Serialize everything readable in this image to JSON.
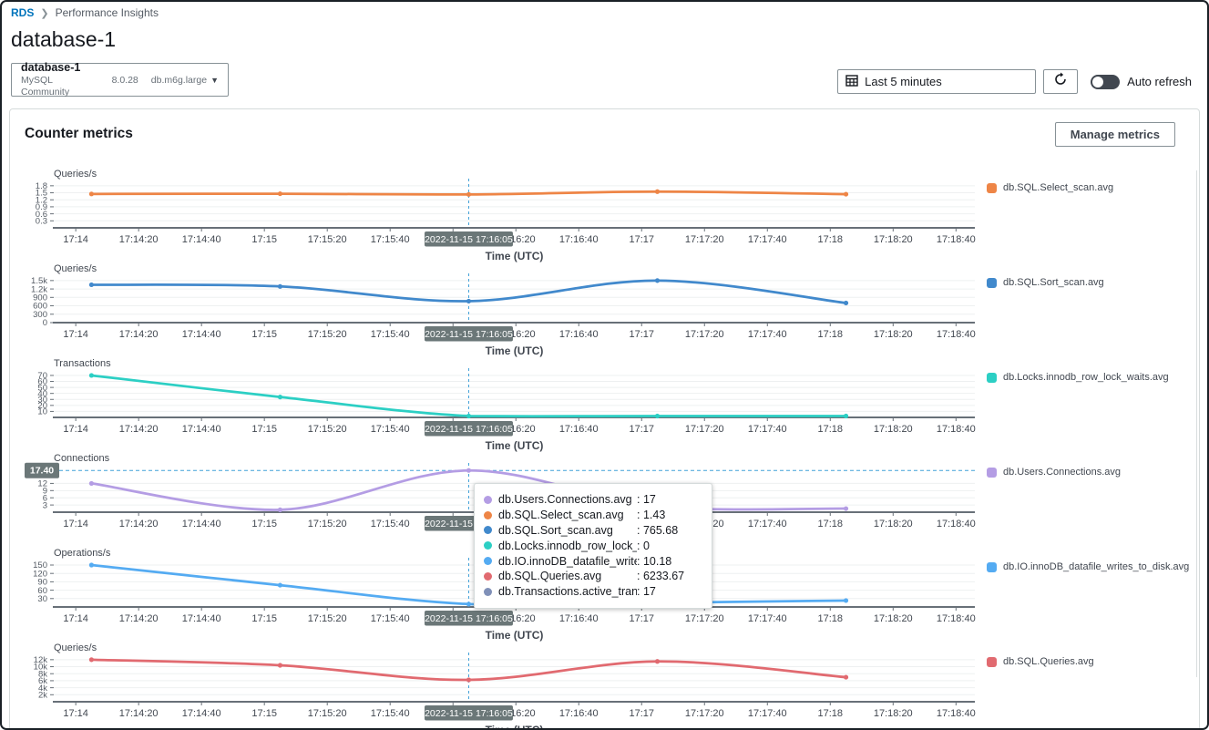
{
  "breadcrumb": {
    "root": "RDS",
    "current": "Performance Insights"
  },
  "page_title": "database-1",
  "instance_selector": {
    "name": "database-1",
    "engine": "MySQL Community",
    "version": "8.0.28",
    "instance_class": "db.m6g.large"
  },
  "controls": {
    "time_range": "Last 5 minutes",
    "auto_refresh_label": "Auto refresh"
  },
  "panel": {
    "title": "Counter metrics",
    "manage_button": "Manage metrics"
  },
  "axis": {
    "x_domain": [
      -7,
      286
    ],
    "x_ticks": [
      {
        "t": 0,
        "l": "17:14"
      },
      {
        "t": 20,
        "l": "17:14:20"
      },
      {
        "t": 40,
        "l": "17:14:40"
      },
      {
        "t": 60,
        "l": "17:15"
      },
      {
        "t": 80,
        "l": "17:15:20"
      },
      {
        "t": 100,
        "l": "17:15:40"
      },
      {
        "t": 120,
        "l": "17:16"
      },
      {
        "t": 140,
        "l": "17:16:20"
      },
      {
        "t": 160,
        "l": "17:16:40"
      },
      {
        "t": 180,
        "l": "17:17"
      },
      {
        "t": 200,
        "l": "17:17:20"
      },
      {
        "t": 220,
        "l": "17:17:40"
      },
      {
        "t": 240,
        "l": "17:18"
      },
      {
        "t": 260,
        "l": "17:18:20"
      },
      {
        "t": 280,
        "l": "17:18:40"
      }
    ],
    "crosshair_t": 125,
    "crosshair_label": "2022-11-15 17:16:05",
    "crosshair_color": "#41a0d8",
    "badge_color": "#6b7778",
    "xlabel": "Time (UTC)"
  },
  "chart_data": [
    {
      "type": "line",
      "series": "db.SQL.Select_scan.avg",
      "ylabel": "Queries/s",
      "color": "#ee8546",
      "y_domain": [
        0,
        1.95
      ],
      "y_ticks": [
        {
          "v": 1.8,
          "l": "1.8"
        },
        {
          "v": 1.5,
          "l": "1.5"
        },
        {
          "v": 1.2,
          "l": "1.2"
        },
        {
          "v": 0.9,
          "l": "0.9"
        },
        {
          "v": 0.6,
          "l": "0.6"
        },
        {
          "v": 0.3,
          "l": "0.3"
        }
      ],
      "points": [
        [
          5,
          1.45
        ],
        [
          65,
          1.46
        ],
        [
          125,
          1.43
        ],
        [
          185,
          1.55
        ],
        [
          245,
          1.44
        ]
      ]
    },
    {
      "type": "line",
      "series": "db.SQL.Sort_scan.avg",
      "ylabel": "Queries/s",
      "color": "#4189cc",
      "y_domain": [
        0,
        1625
      ],
      "y_ticks": [
        {
          "v": 1500,
          "l": "1.5k"
        },
        {
          "v": 1200,
          "l": "1.2k"
        },
        {
          "v": 900,
          "l": "900"
        },
        {
          "v": 600,
          "l": "600"
        },
        {
          "v": 300,
          "l": "300"
        },
        {
          "v": 0,
          "l": "0"
        }
      ],
      "points": [
        [
          5,
          1350
        ],
        [
          65,
          1290
        ],
        [
          125,
          765.68
        ],
        [
          185,
          1500
        ],
        [
          245,
          700
        ]
      ]
    },
    {
      "type": "line",
      "series": "db.Locks.innodb_row_lock_waits.avg",
      "ylabel": "Transactions",
      "color": "#2ccfc4",
      "y_domain": [
        0,
        76
      ],
      "y_ticks": [
        {
          "v": 70,
          "l": "70"
        },
        {
          "v": 60,
          "l": "60"
        },
        {
          "v": 50,
          "l": "50"
        },
        {
          "v": 40,
          "l": "40"
        },
        {
          "v": 30,
          "l": "30"
        },
        {
          "v": 20,
          "l": "20"
        },
        {
          "v": 10,
          "l": "10"
        }
      ],
      "points": [
        [
          5,
          70
        ],
        [
          65,
          34
        ],
        [
          125,
          0
        ],
        [
          185,
          2
        ],
        [
          245,
          1
        ]
      ]
    },
    {
      "type": "line",
      "series": "db.Users.Connections.avg",
      "ylabel": "Connections",
      "color": "#b49de4",
      "y_domain": [
        0,
        19
      ],
      "y_ticks": [
        {
          "v": 12,
          "l": "12"
        },
        {
          "v": 9,
          "l": "9"
        },
        {
          "v": 6,
          "l": "6"
        },
        {
          "v": 3,
          "l": "3"
        }
      ],
      "points": [
        [
          5,
          12
        ],
        [
          65,
          1
        ],
        [
          125,
          17.4
        ],
        [
          185,
          2
        ],
        [
          245,
          1.5
        ]
      ],
      "guide": {
        "value": 17.4,
        "label": "17.40"
      }
    },
    {
      "type": "line",
      "series": "db.IO.innoDB_datafile_writes_to_disk.avg",
      "ylabel": "Operations/s",
      "color": "#54abf2",
      "y_domain": [
        0,
        163
      ],
      "y_ticks": [
        {
          "v": 150,
          "l": "150"
        },
        {
          "v": 120,
          "l": "120"
        },
        {
          "v": 90,
          "l": "90"
        },
        {
          "v": 60,
          "l": "60"
        },
        {
          "v": 30,
          "l": "30"
        }
      ],
      "points": [
        [
          5,
          150
        ],
        [
          65,
          78
        ],
        [
          125,
          10.18
        ],
        [
          185,
          15
        ],
        [
          245,
          23
        ]
      ]
    },
    {
      "type": "line",
      "series": "db.SQL.Queries.avg",
      "ylabel": "Queries/s",
      "color": "#e16a70",
      "y_domain": [
        0,
        13000
      ],
      "y_ticks": [
        {
          "v": 12000,
          "l": "12k"
        },
        {
          "v": 10000,
          "l": "10k"
        },
        {
          "v": 8000,
          "l": "8k"
        },
        {
          "v": 6000,
          "l": "6k"
        },
        {
          "v": 4000,
          "l": "4k"
        },
        {
          "v": 2000,
          "l": "2k"
        }
      ],
      "points": [
        [
          5,
          12000
        ],
        [
          65,
          10400
        ],
        [
          125,
          6233.67
        ],
        [
          185,
          11500
        ],
        [
          245,
          7000
        ]
      ]
    }
  ],
  "tooltip": {
    "rows": [
      {
        "label": "db.Users.Connections.avg",
        "value": ": 17",
        "color": "#b49de4"
      },
      {
        "label": "db.SQL.Select_scan.avg",
        "value": ": 1.43",
        "color": "#ee8546"
      },
      {
        "label": "db.SQL.Sort_scan.avg",
        "value": ": 765.68",
        "color": "#4189cc"
      },
      {
        "label": "db.Locks.innodb_row_lock_waits",
        "value": ": 0",
        "color": "#2ccfc4"
      },
      {
        "label": "db.IO.innoDB_datafile_writes_t",
        "value": ": 10.18",
        "color": "#54abf2"
      },
      {
        "label": "db.SQL.Queries.avg",
        "value": ": 6233.67",
        "color": "#e16a70"
      },
      {
        "label": "db.Transactions.active_transac",
        "value": ": 17",
        "color": "#8090b8"
      }
    ]
  }
}
